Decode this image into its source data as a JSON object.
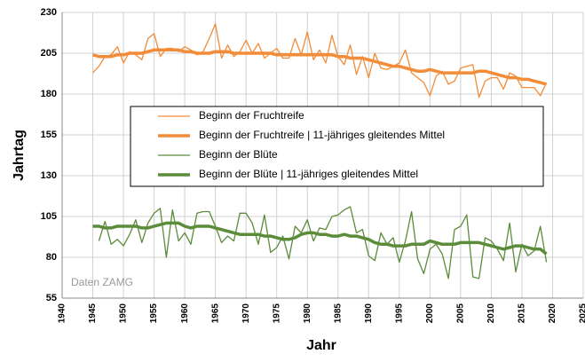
{
  "chart_data": {
    "type": "line",
    "y_label": "Jahrtag",
    "x_label": "Jahr",
    "annotation": "Daten ZAMG",
    "x": [
      1945,
      1946,
      1947,
      1948,
      1949,
      1950,
      1951,
      1952,
      1953,
      1954,
      1955,
      1956,
      1957,
      1958,
      1959,
      1960,
      1961,
      1962,
      1963,
      1964,
      1965,
      1966,
      1967,
      1968,
      1969,
      1970,
      1971,
      1972,
      1973,
      1974,
      1975,
      1976,
      1977,
      1978,
      1979,
      1980,
      1981,
      1982,
      1983,
      1984,
      1985,
      1986,
      1987,
      1988,
      1989,
      1990,
      1991,
      1992,
      1993,
      1994,
      1995,
      1996,
      1997,
      1998,
      1999,
      2000,
      2001,
      2002,
      2003,
      2004,
      2005,
      2006,
      2007,
      2008,
      2009,
      2010,
      2011,
      2012,
      2013,
      2014,
      2015,
      2016,
      2017,
      2018,
      2019
    ],
    "series": [
      {
        "name": "Beginn der Fruchtreife",
        "color": "#f28c38",
        "width": 1.3,
        "values": [
          193,
          197,
          203,
          204,
          209,
          199,
          206,
          204,
          201,
          214,
          217,
          203,
          208,
          208,
          206,
          209,
          207,
          204,
          206,
          214,
          223,
          202,
          210,
          203,
          206,
          213,
          205,
          211,
          202,
          205,
          208,
          202,
          202,
          214,
          204,
          218,
          201,
          207,
          199,
          216,
          203,
          198,
          210,
          192,
          203,
          190,
          205,
          196,
          195,
          197,
          199,
          207,
          193,
          190,
          187,
          179,
          191,
          194,
          186,
          188,
          196,
          197,
          198,
          178,
          188,
          190,
          190,
          183,
          193,
          191,
          184,
          184,
          184,
          179,
          187
        ]
      },
      {
        "name": "Beginn der Fruchtreife | 11-jähriges gleitendes Mittel",
        "color": "#f28c38",
        "width": 3.5,
        "values": [
          204,
          203,
          203,
          203,
          204,
          204,
          205,
          205,
          205,
          206,
          207,
          207,
          207,
          207,
          207,
          206,
          206,
          205,
          205,
          205,
          206,
          206,
          206,
          205,
          205,
          205,
          205,
          205,
          205,
          205,
          204,
          204,
          204,
          204,
          204,
          204,
          204,
          204,
          204,
          204,
          203,
          203,
          202,
          202,
          202,
          201,
          200,
          199,
          198,
          197,
          197,
          196,
          195,
          194,
          194,
          195,
          194,
          193,
          193,
          193,
          193,
          193,
          193,
          194,
          194,
          193,
          192,
          191,
          190,
          190,
          189,
          189,
          188,
          187,
          186
        ]
      },
      {
        "name": "Beginn der Blüte",
        "color": "#5b8c3a",
        "width": 1.3,
        "values": [
          null,
          90,
          102,
          88,
          91,
          87,
          94,
          103,
          89,
          101,
          107,
          110,
          80,
          109,
          90,
          95,
          88,
          107,
          108,
          108,
          99,
          89,
          93,
          90,
          107,
          107,
          101,
          88,
          106,
          83,
          86,
          93,
          79,
          99,
          95,
          103,
          90,
          98,
          97,
          105,
          106,
          109,
          111,
          95,
          97,
          81,
          78,
          95,
          88,
          92,
          77,
          90,
          108,
          79,
          70,
          85,
          88,
          82,
          67,
          97,
          99,
          106,
          68,
          67,
          92,
          90,
          85,
          78,
          101,
          71,
          88,
          81,
          84,
          99,
          77
        ]
      },
      {
        "name": "Beginn der Blüte | 11-jähriges gleitendes Mittel",
        "color": "#5b8c3a",
        "width": 3.5,
        "values": [
          99,
          99,
          98,
          98,
          99,
          99,
          99,
          99,
          98,
          98,
          99,
          100,
          101,
          101,
          101,
          99,
          98,
          99,
          99,
          99,
          98,
          97,
          96,
          95,
          94,
          94,
          94,
          94,
          93,
          93,
          92,
          91,
          91,
          92,
          94,
          95,
          95,
          94,
          94,
          93,
          93,
          94,
          93,
          93,
          92,
          91,
          89,
          88,
          88,
          87,
          87,
          87,
          88,
          88,
          88,
          90,
          89,
          88,
          88,
          88,
          89,
          89,
          89,
          89,
          88,
          87,
          86,
          85,
          86,
          87,
          87,
          86,
          85,
          85,
          82
        ]
      }
    ],
    "xlim": [
      1940,
      2025
    ],
    "xticks": [
      1940,
      1945,
      1950,
      1955,
      1960,
      1965,
      1970,
      1975,
      1980,
      1985,
      1990,
      1995,
      2000,
      2005,
      2010,
      2015,
      2020,
      2025
    ],
    "ylim": [
      55,
      230
    ],
    "yticks": [
      55,
      80,
      105,
      130,
      155,
      180,
      205,
      230
    ],
    "grid": true
  }
}
